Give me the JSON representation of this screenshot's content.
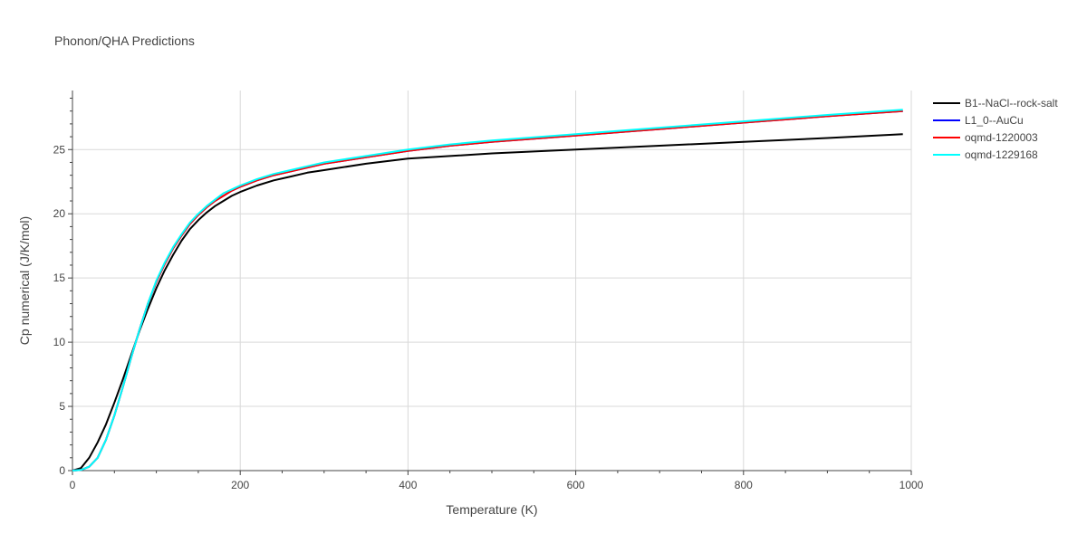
{
  "chart_data": {
    "type": "line",
    "title": "Phonon/QHA Predictions",
    "xlabel": "Temperature (K)",
    "ylabel": "Cp numerical (J/K/mol)",
    "xlim": [
      0,
      1000
    ],
    "ylim": [
      0,
      29.6
    ],
    "xticks": [
      0,
      200,
      400,
      600,
      800,
      1000
    ],
    "xtick_labels": [
      "0",
      "200",
      "400",
      "600",
      "800",
      "1000"
    ],
    "yticks": [
      0,
      5,
      10,
      15,
      20,
      25
    ],
    "ytick_labels": [
      "0",
      "5",
      "10",
      "15",
      "20",
      "25"
    ],
    "grid": true,
    "legend_position": "top-right (outside)",
    "series": [
      {
        "name": "B1--NaCl--rock-salt",
        "color": "#000000",
        "x": [
          0,
          10,
          20,
          30,
          40,
          50,
          60,
          70,
          80,
          90,
          100,
          110,
          120,
          130,
          140,
          150,
          160,
          170,
          180,
          190,
          200,
          220,
          240,
          260,
          280,
          300,
          350,
          400,
          450,
          500,
          600,
          700,
          800,
          900,
          990
        ],
        "y": [
          0,
          0.2,
          1.0,
          2.2,
          3.6,
          5.3,
          7.1,
          9.0,
          10.9,
          12.6,
          14.2,
          15.6,
          16.8,
          17.9,
          18.8,
          19.5,
          20.1,
          20.6,
          21.0,
          21.4,
          21.7,
          22.2,
          22.6,
          22.9,
          23.2,
          23.4,
          23.9,
          24.3,
          24.5,
          24.7,
          25.0,
          25.3,
          25.6,
          25.9,
          26.2
        ]
      },
      {
        "name": "L1_0--AuCu",
        "color": "#0000ff",
        "x": [
          0,
          10,
          20,
          30,
          40,
          50,
          60,
          70,
          80,
          90,
          100,
          110,
          120,
          130,
          140,
          150,
          160,
          170,
          180,
          190,
          200,
          220,
          240,
          260,
          280,
          300,
          350,
          400,
          450,
          500,
          600,
          700,
          800,
          900,
          990
        ],
        "y": [
          0,
          0.05,
          0.3,
          1.0,
          2.4,
          4.3,
          6.5,
          8.8,
          11.0,
          13.0,
          14.7,
          16.1,
          17.3,
          18.3,
          19.2,
          19.9,
          20.5,
          21.0,
          21.4,
          21.8,
          22.1,
          22.6,
          23.0,
          23.3,
          23.6,
          23.9,
          24.4,
          24.9,
          25.3,
          25.6,
          26.1,
          26.6,
          27.1,
          27.6,
          28.0
        ]
      },
      {
        "name": "oqmd-1220003",
        "color": "#ff0000",
        "x": [
          0,
          10,
          20,
          30,
          40,
          50,
          60,
          70,
          80,
          90,
          100,
          110,
          120,
          130,
          140,
          150,
          160,
          170,
          180,
          190,
          200,
          220,
          240,
          260,
          280,
          300,
          350,
          400,
          450,
          500,
          600,
          700,
          800,
          900,
          990
        ],
        "y": [
          0,
          0.05,
          0.3,
          1.0,
          2.4,
          4.3,
          6.5,
          8.8,
          11.0,
          13.0,
          14.7,
          16.1,
          17.3,
          18.3,
          19.2,
          19.9,
          20.5,
          21.0,
          21.4,
          21.8,
          22.1,
          22.6,
          23.0,
          23.3,
          23.6,
          23.9,
          24.4,
          24.9,
          25.3,
          25.6,
          26.1,
          26.6,
          27.1,
          27.6,
          28.0
        ]
      },
      {
        "name": "oqmd-1229168",
        "color": "#00ffff",
        "x": [
          0,
          10,
          20,
          30,
          40,
          50,
          60,
          70,
          80,
          90,
          100,
          110,
          120,
          130,
          140,
          150,
          160,
          170,
          180,
          190,
          200,
          220,
          240,
          260,
          280,
          300,
          350,
          400,
          450,
          500,
          600,
          700,
          800,
          900,
          990
        ],
        "y": [
          0,
          0.05,
          0.3,
          1.0,
          2.4,
          4.3,
          6.5,
          8.8,
          11.0,
          13.0,
          14.8,
          16.2,
          17.4,
          18.4,
          19.3,
          20.0,
          20.6,
          21.1,
          21.6,
          21.9,
          22.2,
          22.7,
          23.1,
          23.4,
          23.7,
          24.0,
          24.5,
          25.0,
          25.4,
          25.7,
          26.2,
          26.7,
          27.2,
          27.7,
          28.1
        ]
      }
    ]
  }
}
